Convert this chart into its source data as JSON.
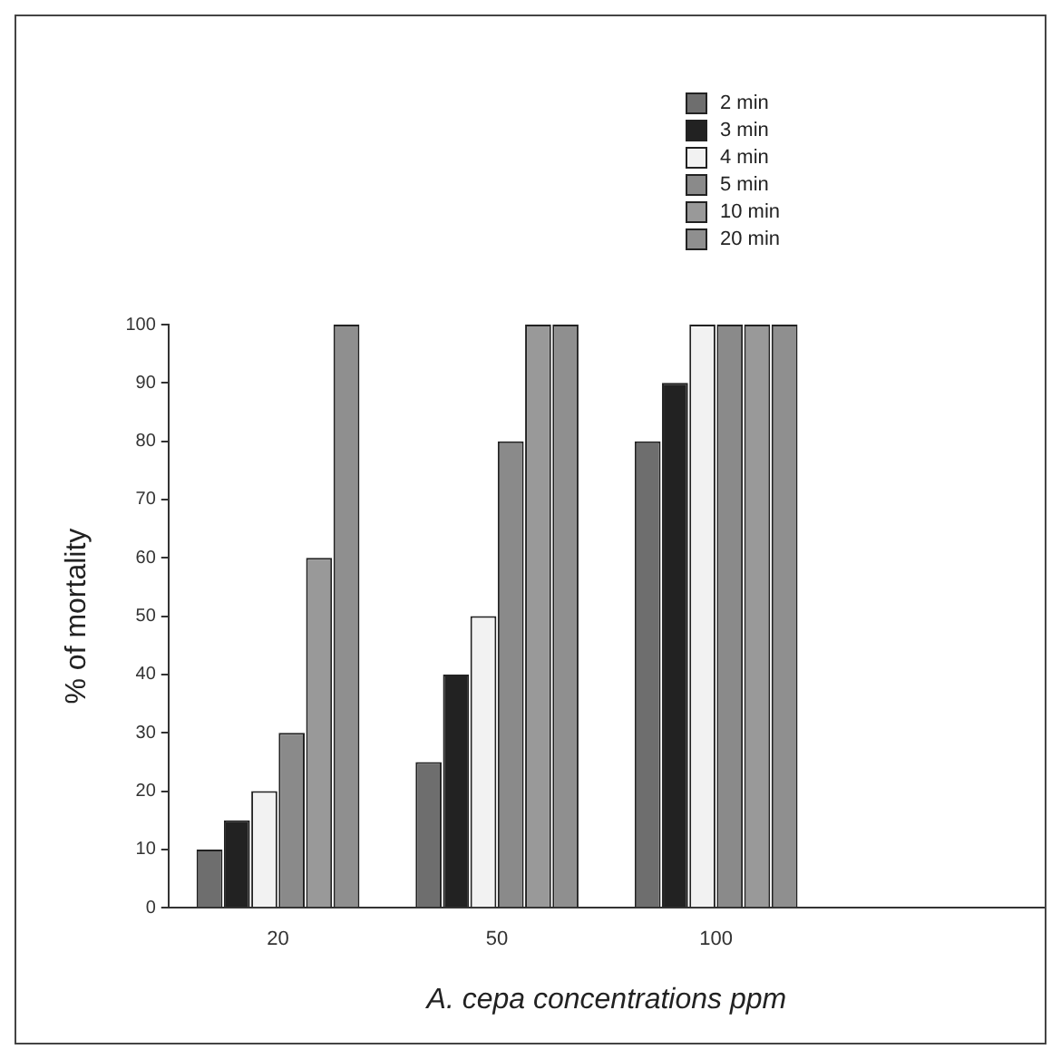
{
  "chart_data": {
    "type": "bar",
    "xlabel": "A. cepa concentrations ppm",
    "ylabel": "% of mortality",
    "categories": [
      "20",
      "50",
      "100",
      null
    ],
    "series": [
      {
        "name": "2 min",
        "color": "#6e6e6e",
        "values": [
          10,
          25,
          80,
          null
        ]
      },
      {
        "name": "3 min",
        "color": "#222222",
        "values": [
          15,
          40,
          90,
          null
        ]
      },
      {
        "name": "4 min",
        "color": "#f2f2f2",
        "values": [
          20,
          50,
          100,
          null
        ]
      },
      {
        "name": "5 min",
        "color": "#8a8a8a",
        "values": [
          30,
          80,
          100,
          null
        ]
      },
      {
        "name": "10 min",
        "color": "#999999",
        "values": [
          60,
          100,
          100,
          null
        ]
      },
      {
        "name": "20 min",
        "color": "#8f8f8f",
        "values": [
          100,
          100,
          100,
          null
        ]
      }
    ],
    "ylim": [
      0,
      100
    ],
    "yticks": [
      0,
      10,
      20,
      30,
      40,
      50,
      60,
      70,
      80,
      90,
      100
    ],
    "grid": false,
    "legend": "top right"
  }
}
